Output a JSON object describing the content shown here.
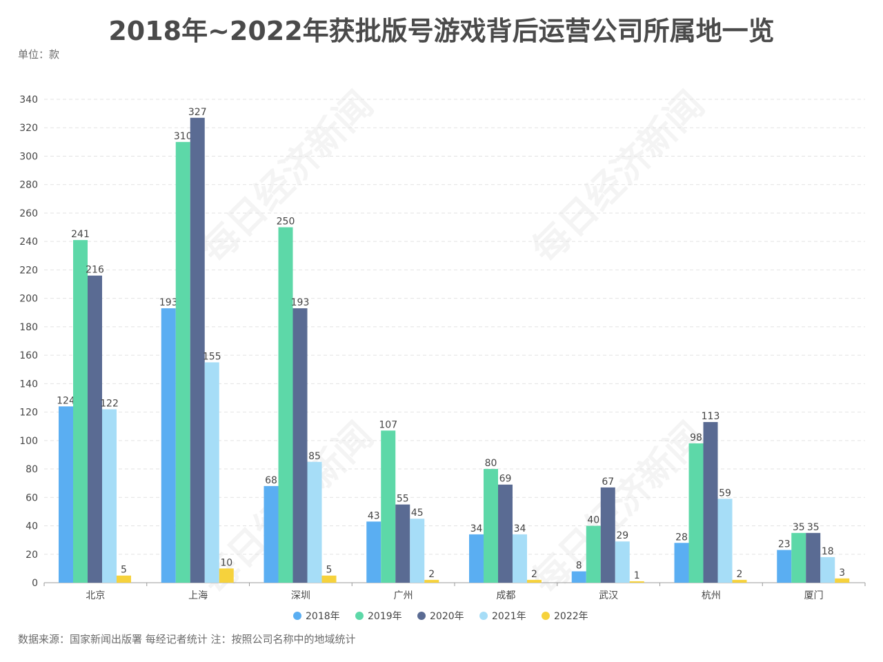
{
  "title": "2018年~2022年获批版号游戏背后运营公司所属地一览",
  "unit_label": "单位：款",
  "source_note": "数据来源：国家新闻出版署 每经记者统计 注：按照公司名称中的地域统计",
  "watermark": "每日经济新闻",
  "chart_data": {
    "type": "bar",
    "title": "2018年~2022年获批版号游戏背后运营公司所属地一览",
    "xlabel": "",
    "ylabel": "",
    "ylim": [
      0,
      340
    ],
    "yticks": [
      0,
      20,
      40,
      60,
      80,
      100,
      120,
      140,
      160,
      180,
      200,
      220,
      240,
      260,
      280,
      300,
      320,
      340
    ],
    "grid": true,
    "legend_position": "bottom",
    "categories": [
      "北京",
      "上海",
      "深圳",
      "广州",
      "成都",
      "武汉",
      "杭州",
      "厦门"
    ],
    "series": [
      {
        "name": "2018年",
        "color": "#5aaef2",
        "values": [
          124,
          193,
          68,
          43,
          34,
          8,
          28,
          23
        ]
      },
      {
        "name": "2019年",
        "color": "#5dd8a8",
        "values": [
          241,
          310,
          250,
          107,
          80,
          40,
          98,
          35
        ]
      },
      {
        "name": "2020年",
        "color": "#5a6b93",
        "values": [
          216,
          327,
          193,
          55,
          69,
          67,
          113,
          35
        ]
      },
      {
        "name": "2021年",
        "color": "#a6ddf7",
        "values": [
          122,
          155,
          85,
          45,
          34,
          29,
          59,
          18
        ]
      },
      {
        "name": "2022年",
        "color": "#f6d23c",
        "values": [
          5,
          10,
          5,
          2,
          2,
          1,
          2,
          3
        ]
      }
    ]
  }
}
